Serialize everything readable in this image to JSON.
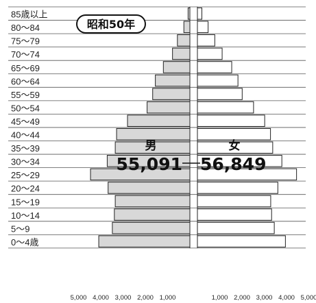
{
  "chart_data": {
    "type": "bar",
    "title": "昭和50年",
    "categories": [
      "85歳以上",
      "80～84",
      "75～79",
      "70～74",
      "65～69",
      "60～64",
      "55～59",
      "50～54",
      "45～49",
      "40～44",
      "35～39",
      "30～34",
      "25～29",
      "20～24",
      "15～19",
      "10～14",
      "5～9",
      "0～4歳"
    ],
    "series": [
      {
        "name": "男",
        "total_label": "55,091",
        "values": [
          80,
          270,
          560,
          780,
          1190,
          1550,
          1670,
          1920,
          2800,
          3290,
          3350,
          3710,
          4460,
          3670,
          3350,
          3390,
          3480,
          4090
        ]
      },
      {
        "name": "女",
        "total_label": "56,849",
        "values": [
          200,
          480,
          780,
          1110,
          1540,
          1820,
          2010,
          2520,
          3020,
          3280,
          3380,
          3790,
          4450,
          3610,
          3290,
          3330,
          3450,
          3950
        ]
      }
    ],
    "x_ticks": [
      "5,000",
      "4,000",
      "3,000",
      "2,000",
      "1,000",
      "1,000",
      "2,000",
      "3,000",
      "4,000",
      "5,000"
    ],
    "xlim": [
      -5000,
      5000
    ],
    "grid": true,
    "colors": {
      "male_fill": "#d8d8d8",
      "female_fill": "#ffffff",
      "outline": "#222222"
    }
  }
}
